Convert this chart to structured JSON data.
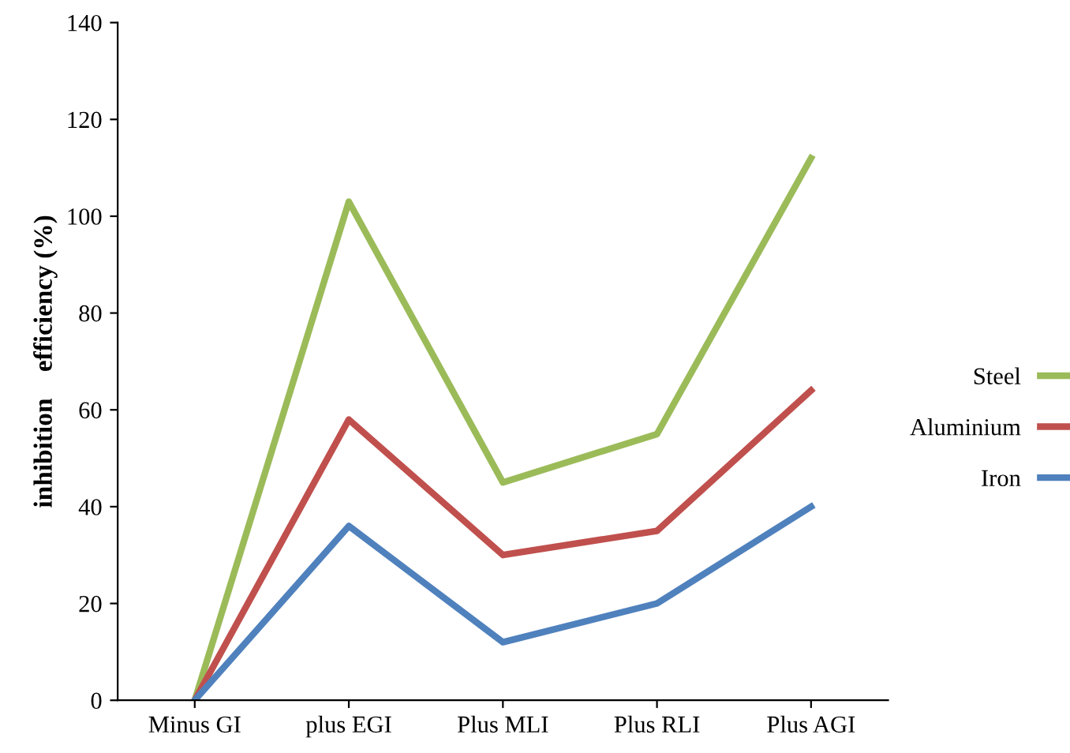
{
  "chart_data": {
    "type": "line",
    "ylabel": "inhibition    efficiency (%)",
    "categories": [
      "Minus GI",
      "plus EGI",
      "Plus MLI",
      "Plus RLI",
      "Plus AGI"
    ],
    "series": [
      {
        "name": "Steel",
        "color": "#9bbb59",
        "values": [
          0,
          103,
          45,
          55,
          112
        ]
      },
      {
        "name": "Aluminium",
        "color": "#c0504d",
        "values": [
          0,
          58,
          30,
          35,
          64
        ]
      },
      {
        "name": "Iron",
        "color": "#4f81bd",
        "values": [
          0,
          36,
          12,
          20,
          40
        ]
      }
    ],
    "ylim": [
      0,
      140
    ],
    "yticks": [
      0,
      20,
      40,
      60,
      80,
      100,
      120,
      140
    ],
    "grid": false,
    "legend": "right",
    "marker": "none",
    "line_style": "solid"
  }
}
